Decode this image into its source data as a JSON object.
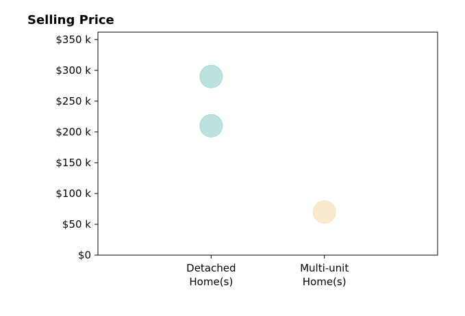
{
  "chart_data": {
    "type": "scatter",
    "title": "Selling Price",
    "xlabel": "",
    "ylabel": "",
    "categories": [
      [
        "Detached",
        "Home(s)"
      ],
      [
        "Multi-unit",
        "Home(s)"
      ]
    ],
    "xlim": [
      -1,
      2
    ],
    "ylim": [
      0,
      362
    ],
    "yticks": [
      0,
      50,
      100,
      150,
      200,
      250,
      300,
      350
    ],
    "ytick_labels": [
      "$0",
      "$50 k",
      "$100 k",
      "$150 k",
      "$200 k",
      "$250 k",
      "$300 k",
      "$350 k"
    ],
    "grid": false,
    "series": [
      {
        "color": "#a6d8d4",
        "points": [
          {
            "x": 0,
            "y": 290
          },
          {
            "x": 0,
            "y": 210
          }
        ]
      },
      {
        "color": "#f5e2bf",
        "points": [
          {
            "x": 1,
            "y": 70
          }
        ]
      }
    ]
  }
}
